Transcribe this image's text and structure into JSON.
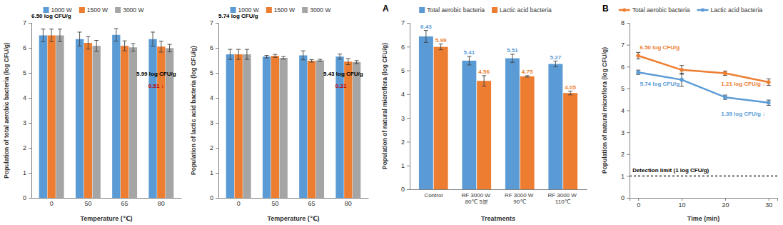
{
  "chart_data": [
    {
      "type": "bar",
      "y_label": "Population of total aerobic bacteria (log CFU/g)",
      "x_label": "Temperature (℃)",
      "categories": [
        "0",
        "50",
        "65",
        "80"
      ],
      "series": [
        {
          "name": "1000 W",
          "color": "#5B9BD5",
          "values": [
            6.5,
            6.35,
            6.52,
            6.35
          ],
          "errors": [
            0.25,
            0.28,
            0.25,
            0.28
          ]
        },
        {
          "name": "1500 W",
          "color": "#ED7D31",
          "values": [
            6.5,
            6.2,
            6.08,
            6.05
          ],
          "errors": [
            0.25,
            0.25,
            0.2,
            0.22
          ]
        },
        {
          "name": "3000 W",
          "color": "#A5A5A5",
          "values": [
            6.5,
            6.08,
            6.02,
            5.99
          ],
          "errors": [
            0.25,
            0.22,
            0.15,
            0.15
          ]
        }
      ],
      "ylim": [
        0,
        7
      ],
      "yticks": [
        0,
        1,
        2,
        3,
        4,
        5,
        6,
        7
      ],
      "legend": "top",
      "annotations": [
        "6.50 log CFU/g",
        "5.99 log CFU/g",
        "0.51 ↓"
      ]
    },
    {
      "type": "bar",
      "y_label": "Population of lactic acid bacteria (log CFU/g)",
      "x_label": "Temperature (℃)",
      "categories": [
        "0",
        "50",
        "65",
        "80"
      ],
      "series": [
        {
          "name": "1000 W",
          "color": "#5B9BD5",
          "values": [
            5.74,
            5.65,
            5.7,
            5.65
          ],
          "errors": [
            0.2,
            0.05,
            0.18,
            0.1
          ]
        },
        {
          "name": "1500 W",
          "color": "#ED7D31",
          "values": [
            5.74,
            5.68,
            5.48,
            5.45
          ],
          "errors": [
            0.2,
            0.06,
            0.05,
            0.12
          ]
        },
        {
          "name": "3000 W",
          "color": "#A5A5A5",
          "values": [
            5.74,
            5.6,
            5.5,
            5.43
          ],
          "errors": [
            0.2,
            0.05,
            0.04,
            0.06
          ]
        }
      ],
      "ylim": [
        0,
        7
      ],
      "yticks": [
        0,
        1,
        2,
        3,
        4,
        5,
        6,
        7
      ],
      "legend": "top",
      "annotations": [
        "5.74 log CFU/g",
        "5.43 log CFU/g",
        "0.31"
      ]
    },
    {
      "type": "bar",
      "panel_label": "A",
      "y_label": "Population of natural microflora (log CFU/g)",
      "x_label": "Treatments",
      "categories": [
        "Control",
        "RF 3000 W 80℃ 5분",
        "RF 3000 W 90℃",
        "RF 3000 W 110℃"
      ],
      "series": [
        {
          "name": "Total aerobic bacteria",
          "color": "#5B9BD5",
          "values": [
            6.43,
            5.41,
            5.51,
            5.27
          ],
          "errors": [
            0.25,
            0.18,
            0.17,
            0.12
          ]
        },
        {
          "name": "Lactic acid bacteria",
          "color": "#ED7D31",
          "values": [
            5.99,
            4.56,
            4.75,
            4.05
          ],
          "errors": [
            0.12,
            0.22,
            0.03,
            0.08
          ]
        }
      ],
      "ylim": [
        0,
        7
      ],
      "yticks": [
        0,
        1,
        2,
        3,
        4,
        5,
        6,
        7
      ],
      "legend": "top",
      "data_labels": true
    },
    {
      "type": "line",
      "panel_label": "B",
      "y_label": "Population of natural microflora (log CFU/g)",
      "x_label": "Time (min)",
      "x": [
        0,
        10,
        20,
        30
      ],
      "xlim": [
        -2,
        32
      ],
      "xticks": [
        0,
        10,
        20,
        30
      ],
      "ylim": [
        0,
        8
      ],
      "yticks": [
        0,
        1,
        2,
        3,
        4,
        5,
        6,
        7,
        8
      ],
      "series": [
        {
          "name": "Total aerobic bacteria",
          "color": "#ED7D31",
          "marker": "circle",
          "values": [
            6.5,
            5.85,
            5.7,
            5.29
          ],
          "errors": [
            0.15,
            0.2,
            0.1,
            0.15
          ]
        },
        {
          "name": "Lactic acid bacteria",
          "color": "#5B9BD5",
          "marker": "circle",
          "values": [
            5.74,
            5.4,
            4.6,
            4.35
          ],
          "errors": [
            0.1,
            0.3,
            0.1,
            0.12
          ]
        }
      ],
      "reference_line": {
        "value": 1,
        "label": "Detection limit (1 log CFU/g)"
      },
      "legend": "top",
      "annotations": [
        "6.50 log CFU/g",
        "1.21 log CFU/g ↓",
        "5.74 log CFU/g",
        "1.39 log CFU/g ↓"
      ]
    }
  ]
}
